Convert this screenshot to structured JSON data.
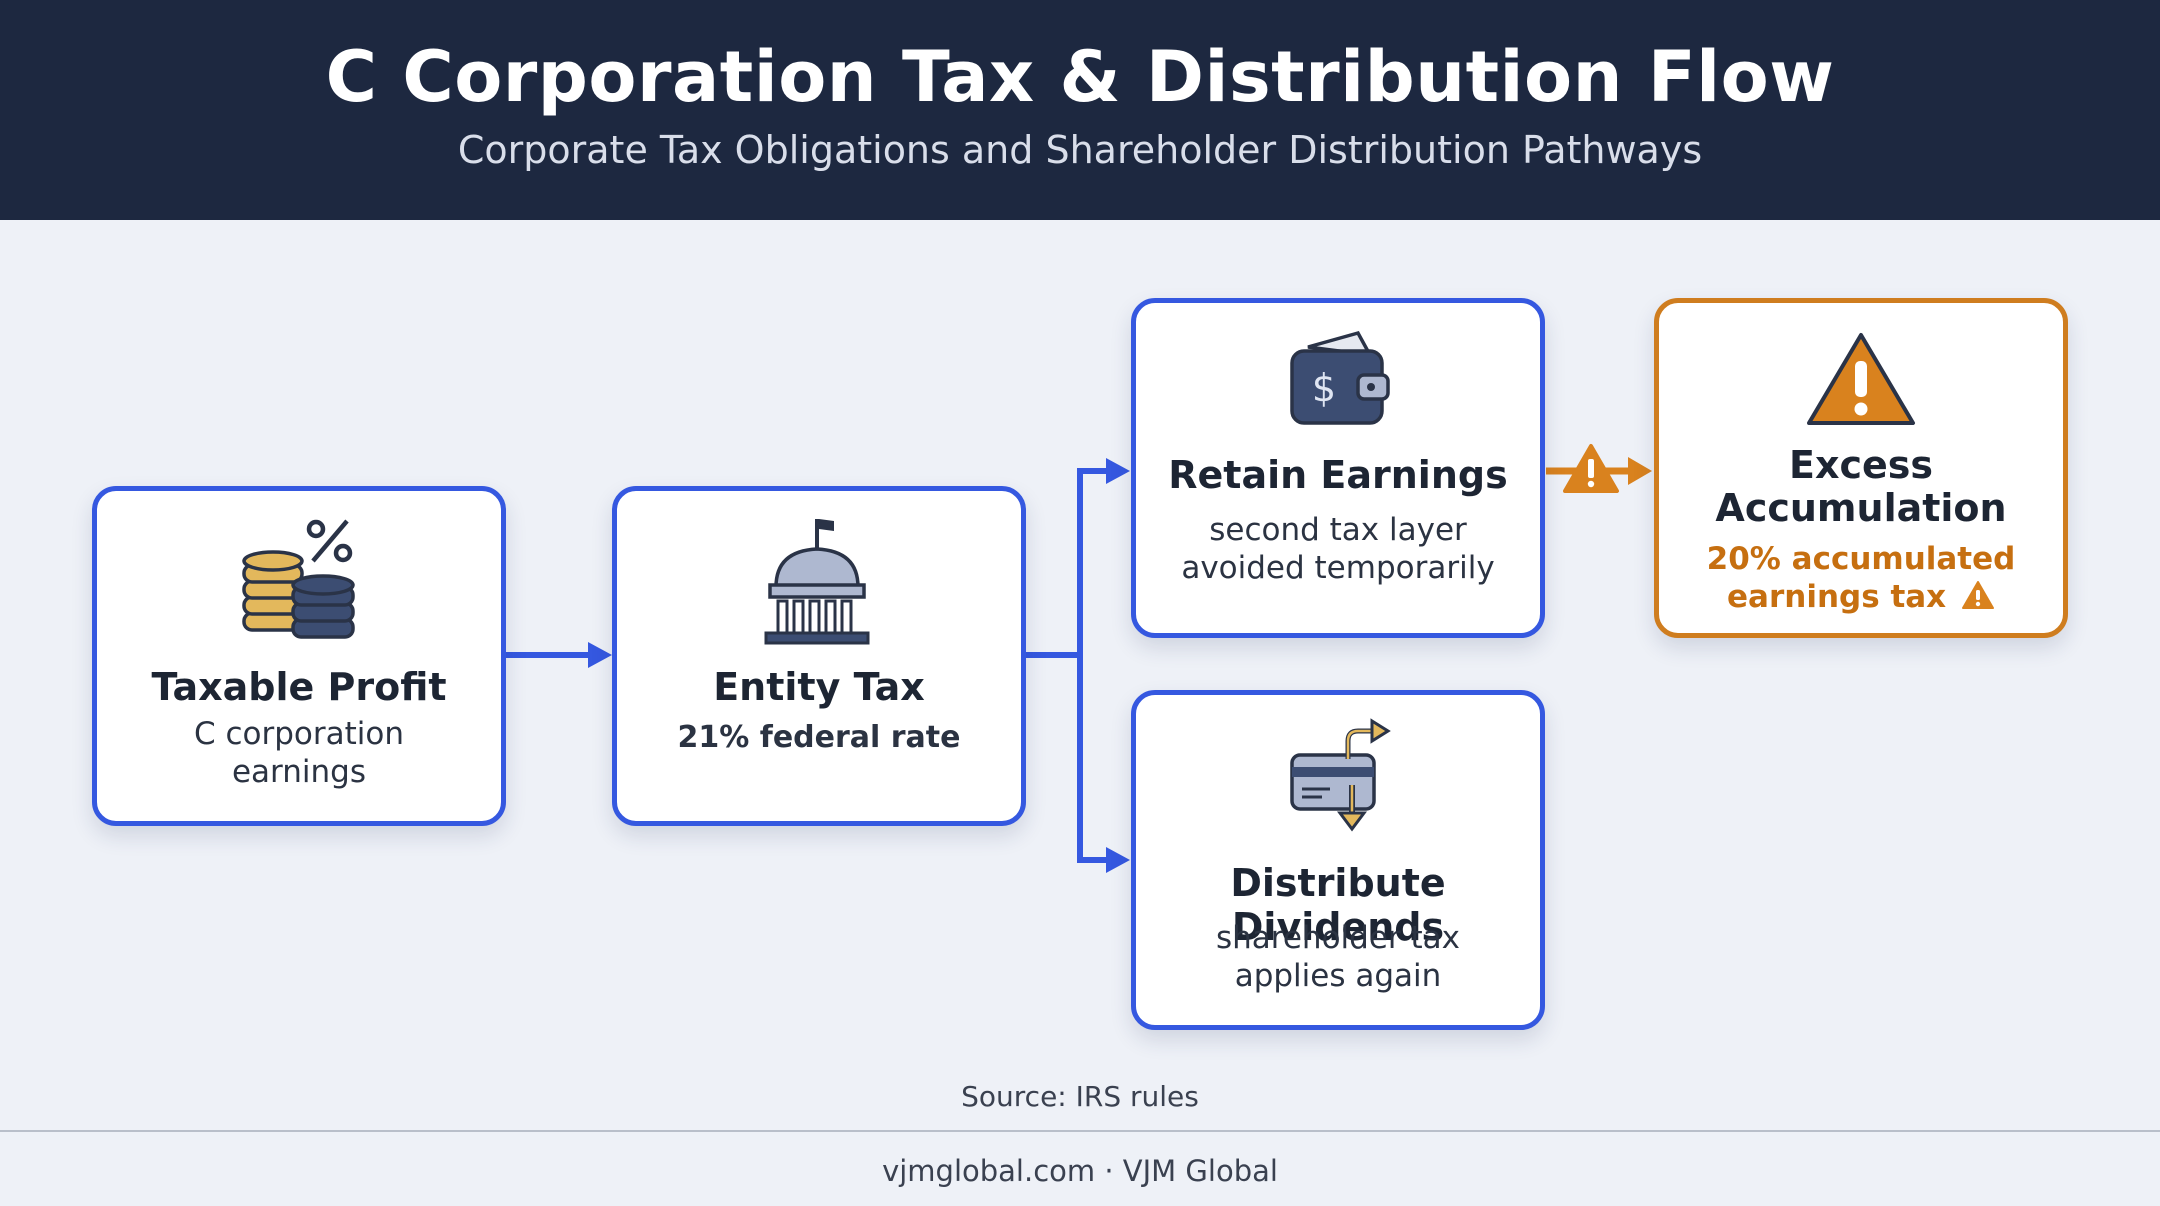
{
  "header": {
    "title": "C Corporation Tax & Distribution Flow",
    "subtitle": "Corporate Tax Obligations and Shareholder Distribution Pathways"
  },
  "nodes": {
    "taxable_profit": {
      "title": "Taxable Profit",
      "desc_line1": "C corporation",
      "desc_line2": "earnings",
      "icon": "coins-percent-icon"
    },
    "entity_tax": {
      "title": "Entity Tax",
      "desc": "21% federal rate",
      "icon": "government-building-icon"
    },
    "retain_earnings": {
      "title": "Retain Earnings",
      "desc_line1": "second tax layer",
      "desc_line2": "avoided temporarily",
      "icon": "wallet-icon"
    },
    "distribute_dividends": {
      "title": "Distribute Dividends",
      "desc_line1": "shareholder tax",
      "desc_line2": "applies again",
      "icon": "card-transfer-icon"
    },
    "excess_accumulation": {
      "title_line1": "Excess",
      "title_line2": "Accumulation",
      "desc_line1": "20% accumulated",
      "desc_line2": "earnings tax",
      "icon": "warning-triangle-icon"
    }
  },
  "source": "Source: IRS rules",
  "footer": "vjmglobal.com · VJM Global",
  "colors": {
    "header_bg": "#1d2840",
    "accent_blue": "#3558e0",
    "warning_orange": "#cf7d1f",
    "background": "#eef1f7"
  }
}
